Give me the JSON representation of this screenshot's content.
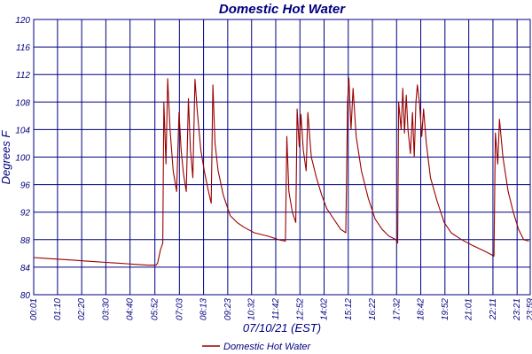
{
  "chart_data": {
    "type": "line",
    "title": "Domestic Hot Water",
    "xlabel": "07/10/21 (EST)",
    "ylabel": "Degrees F",
    "ylim": [
      80,
      120
    ],
    "yticks": [
      "80",
      "84",
      "88",
      "92",
      "96",
      "100",
      "104",
      "108",
      "112",
      "116",
      "120"
    ],
    "xticks": [
      "00:01",
      "01:10",
      "02:20",
      "03:30",
      "04:40",
      "05:52",
      "07:03",
      "08:13",
      "09:23",
      "10:32",
      "11:42",
      "12:52",
      "14:02",
      "15:12",
      "16:22",
      "17:32",
      "18:42",
      "19:52",
      "21:01",
      "22:11",
      "23:21",
      "23:59"
    ],
    "grid": true,
    "legend": "bottom",
    "colors": {
      "series": "#990000",
      "grid": "#000080",
      "text": "#000080"
    },
    "series": [
      {
        "name": "Domestic Hot Water",
        "points": [
          [
            "00:01",
            85.4
          ],
          [
            "00:30",
            85.3
          ],
          [
            "01:00",
            85.2
          ],
          [
            "01:30",
            85.1
          ],
          [
            "02:00",
            85.0
          ],
          [
            "02:30",
            84.9
          ],
          [
            "03:00",
            84.8
          ],
          [
            "03:30",
            84.7
          ],
          [
            "04:00",
            84.6
          ],
          [
            "04:30",
            84.5
          ],
          [
            "05:00",
            84.4
          ],
          [
            "05:30",
            84.3
          ],
          [
            "05:55",
            84.3
          ],
          [
            "06:00",
            84.6
          ],
          [
            "06:08",
            86.5
          ],
          [
            "06:15",
            87.5
          ],
          [
            "06:18",
            108.0
          ],
          [
            "06:24",
            99.0
          ],
          [
            "06:29",
            111.4
          ],
          [
            "06:36",
            104.0
          ],
          [
            "06:45",
            98.0
          ],
          [
            "06:55",
            95.0
          ],
          [
            "07:02",
            106.5
          ],
          [
            "07:08",
            101.0
          ],
          [
            "07:15",
            97.5
          ],
          [
            "07:23",
            95.0
          ],
          [
            "07:29",
            108.5
          ],
          [
            "07:35",
            101.0
          ],
          [
            "07:42",
            97.0
          ],
          [
            "07:48",
            111.3
          ],
          [
            "07:55",
            106.5
          ],
          [
            "08:05",
            101.0
          ],
          [
            "08:15",
            98.0
          ],
          [
            "08:25",
            95.5
          ],
          [
            "08:35",
            93.3
          ],
          [
            "08:40",
            110.5
          ],
          [
            "08:46",
            102.0
          ],
          [
            "08:55",
            98.0
          ],
          [
            "09:10",
            94.5
          ],
          [
            "09:30",
            91.5
          ],
          [
            "09:50",
            90.5
          ],
          [
            "10:10",
            89.8
          ],
          [
            "10:40",
            89.0
          ],
          [
            "11:20",
            88.5
          ],
          [
            "11:50",
            88.0
          ],
          [
            "12:10",
            87.8
          ],
          [
            "12:14",
            103.0
          ],
          [
            "12:20",
            95.0
          ],
          [
            "12:30",
            92.0
          ],
          [
            "12:40",
            90.5
          ],
          [
            "12:44",
            107.0
          ],
          [
            "12:50",
            101.5
          ],
          [
            "12:55",
            106.2
          ],
          [
            "13:02",
            101.0
          ],
          [
            "13:10",
            98.0
          ],
          [
            "13:15",
            106.5
          ],
          [
            "13:25",
            100.0
          ],
          [
            "13:40",
            97.0
          ],
          [
            "13:55",
            94.5
          ],
          [
            "14:10",
            92.5
          ],
          [
            "14:30",
            91.0
          ],
          [
            "14:50",
            89.5
          ],
          [
            "15:05",
            89.0
          ],
          [
            "15:10",
            108.0
          ],
          [
            "15:14",
            111.5
          ],
          [
            "15:20",
            104.0
          ],
          [
            "15:26",
            110.0
          ],
          [
            "15:35",
            103.0
          ],
          [
            "15:50",
            98.0
          ],
          [
            "16:10",
            94.0
          ],
          [
            "16:30",
            91.0
          ],
          [
            "16:50",
            89.5
          ],
          [
            "17:10",
            88.5
          ],
          [
            "17:30",
            88.0
          ],
          [
            "17:35",
            87.5
          ],
          [
            "17:38",
            108.0
          ],
          [
            "17:45",
            104.0
          ],
          [
            "17:50",
            110.0
          ],
          [
            "17:55",
            103.5
          ],
          [
            "18:00",
            109.0
          ],
          [
            "18:05",
            104.0
          ],
          [
            "18:12",
            100.5
          ],
          [
            "18:18",
            106.5
          ],
          [
            "18:23",
            100.0
          ],
          [
            "18:28",
            108.0
          ],
          [
            "18:32",
            110.5
          ],
          [
            "18:38",
            108.0
          ],
          [
            "18:45",
            103.0
          ],
          [
            "18:50",
            107.0
          ],
          [
            "18:58",
            102.0
          ],
          [
            "19:10",
            97.0
          ],
          [
            "19:30",
            93.5
          ],
          [
            "19:50",
            90.5
          ],
          [
            "20:10",
            89.0
          ],
          [
            "20:40",
            88.0
          ],
          [
            "21:10",
            87.2
          ],
          [
            "21:40",
            86.5
          ],
          [
            "22:00",
            86.0
          ],
          [
            "22:14",
            85.6
          ],
          [
            "22:18",
            103.5
          ],
          [
            "22:25",
            99.0
          ],
          [
            "22:30",
            105.5
          ],
          [
            "22:40",
            100.0
          ],
          [
            "22:55",
            95.0
          ],
          [
            "23:10",
            92.0
          ],
          [
            "23:25",
            89.5
          ],
          [
            "23:40",
            88.0
          ],
          [
            "23:55",
            87.8
          ]
        ]
      }
    ]
  }
}
